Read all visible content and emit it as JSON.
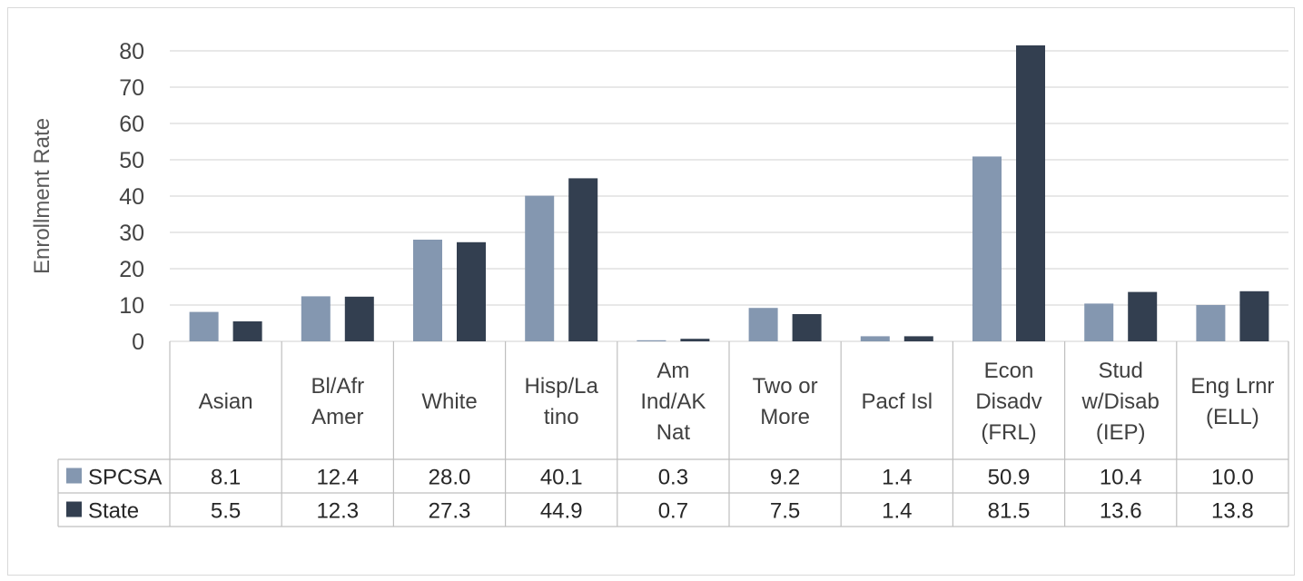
{
  "chart_data": {
    "type": "bar",
    "title": "",
    "ylabel": "Enrollment Rate",
    "xlabel": "",
    "ylim": [
      0,
      80
    ],
    "yticks": [
      0,
      10,
      20,
      30,
      40,
      50,
      60,
      70,
      80
    ],
    "grid": true,
    "legend": "data-table",
    "categories": [
      [
        "Asian"
      ],
      [
        "Bl/Afr",
        "Amer"
      ],
      [
        "White"
      ],
      [
        "Hisp/La",
        "tino"
      ],
      [
        "Am",
        "Ind/AK",
        "Nat"
      ],
      [
        "Two or",
        "More"
      ],
      [
        "Pacf Isl"
      ],
      [
        "Econ",
        "Disadv",
        "(FRL)"
      ],
      [
        "Stud",
        "w/Disab",
        "(IEP)"
      ],
      [
        "Eng Lrnr",
        "(ELL)"
      ]
    ],
    "series": [
      {
        "name": "SPCSA",
        "color": "#8497b0",
        "values": [
          8.1,
          12.4,
          28.0,
          40.1,
          0.3,
          9.2,
          1.4,
          50.9,
          10.4,
          10.0
        ]
      },
      {
        "name": "State",
        "color": "#333f50",
        "values": [
          5.5,
          12.3,
          27.3,
          44.9,
          0.7,
          7.5,
          1.4,
          81.5,
          13.6,
          13.8
        ]
      }
    ]
  }
}
